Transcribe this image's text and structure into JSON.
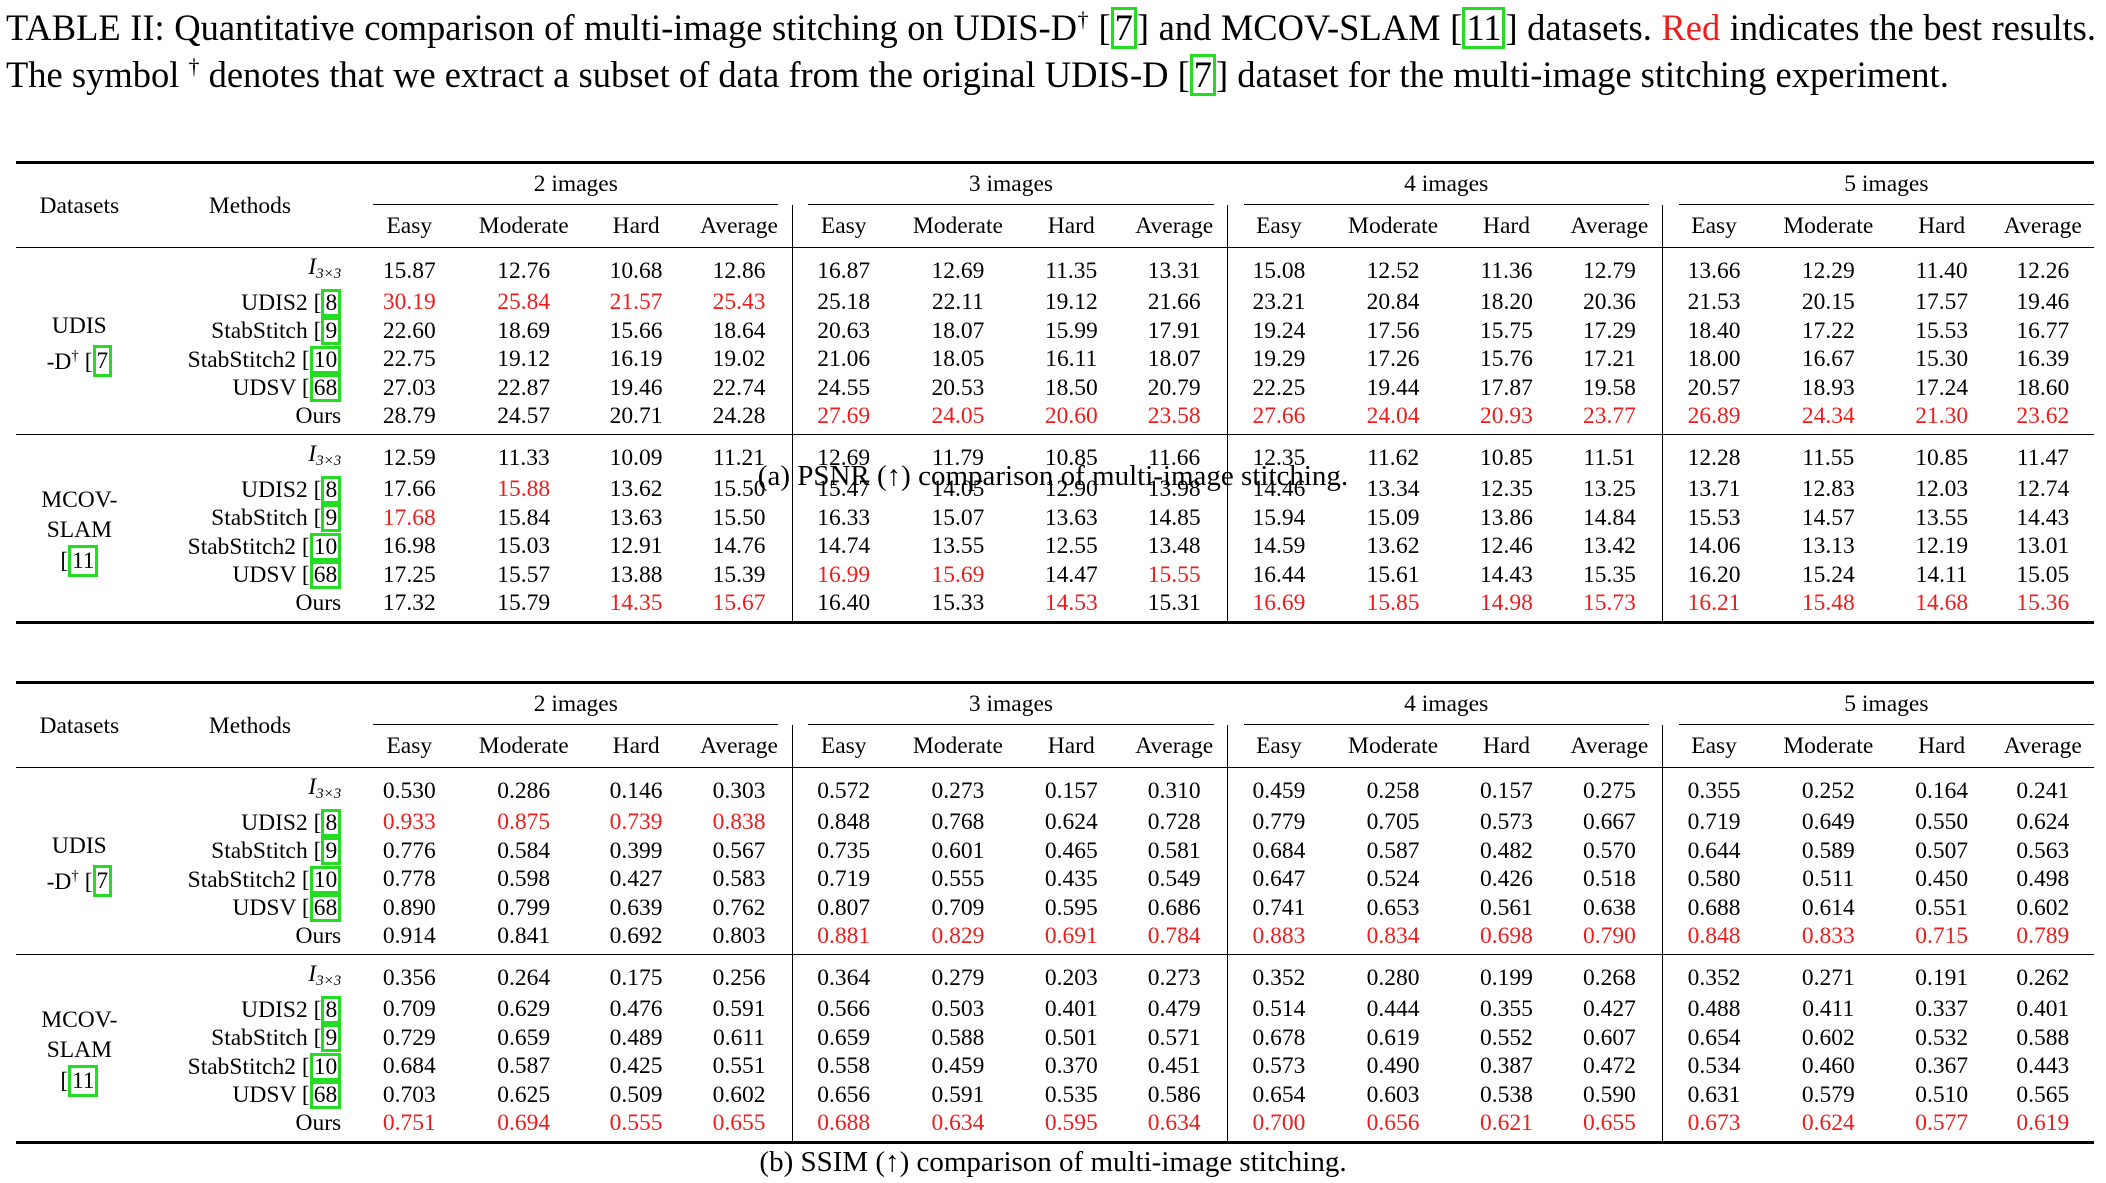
{
  "caption": {
    "prefix": "TABLE II: Quantitative comparison of multi-image stitching on UDIS-D",
    "dagger": "†",
    "ref1_open": " [",
    "ref1": "7",
    "mid1": "] and MCOV-SLAM [",
    "ref2": "11",
    "mid2": "] datasets. ",
    "red_word": "Red",
    "mid3": " indicates the best results. The symbol ",
    "dagger2": "†",
    "mid4": " denotes that we extract a subset of data from the original UDIS-D [",
    "ref3": "7",
    "suffix": "] dataset for the multi-image stitching experiment."
  },
  "header": {
    "datasets": "Datasets",
    "methods": "Methods",
    "groups": [
      "2 images",
      "3 images",
      "4 images",
      "5 images"
    ],
    "subcols": [
      "Easy",
      "Moderate",
      "Hard",
      "Average"
    ]
  },
  "dataset_labels": {
    "udis_line1": "UDIS",
    "udis_line2": "-D",
    "udis_dagger": "†",
    "udis_ref": "7",
    "mcov_line1": "MCOV-",
    "mcov_line2": "SLAM",
    "mcov_ref": "11"
  },
  "methods": {
    "identity_base": "I",
    "identity_sub": "3×3",
    "udis2": "UDIS2 [",
    "udis2_ref": "8",
    "stab": "StabStitch [",
    "stab_ref": "9",
    "stab2": "StabStitch2 [",
    "stab2_ref": "10",
    "udsv": "UDSV [",
    "udsv_ref": "68",
    "ours": "Ours"
  },
  "colors": {
    "best": "#ee1c1c",
    "ref_box": "#22dd22"
  },
  "psnr": {
    "caption": "(a) PSNR (↑) comparison of multi-image stitching.",
    "udis": [
      [
        "15.87",
        "12.76",
        "10.68",
        "12.86",
        "16.87",
        "12.69",
        "11.35",
        "13.31",
        "15.08",
        "12.52",
        "11.36",
        "12.79",
        "13.66",
        "12.29",
        "11.40",
        "12.26"
      ],
      [
        "30.19",
        "25.84",
        "21.57",
        "25.43",
        "25.18",
        "22.11",
        "19.12",
        "21.66",
        "23.21",
        "20.84",
        "18.20",
        "20.36",
        "21.53",
        "20.15",
        "17.57",
        "19.46"
      ],
      [
        "22.60",
        "18.69",
        "15.66",
        "18.64",
        "20.63",
        "18.07",
        "15.99",
        "17.91",
        "19.24",
        "17.56",
        "15.75",
        "17.29",
        "18.40",
        "17.22",
        "15.53",
        "16.77"
      ],
      [
        "22.75",
        "19.12",
        "16.19",
        "19.02",
        "21.06",
        "18.05",
        "16.11",
        "18.07",
        "19.29",
        "17.26",
        "15.76",
        "17.21",
        "18.00",
        "16.67",
        "15.30",
        "16.39"
      ],
      [
        "27.03",
        "22.87",
        "19.46",
        "22.74",
        "24.55",
        "20.53",
        "18.50",
        "20.79",
        "22.25",
        "19.44",
        "17.87",
        "19.58",
        "20.57",
        "18.93",
        "17.24",
        "18.60"
      ],
      [
        "28.79",
        "24.57",
        "20.71",
        "24.28",
        "27.69",
        "24.05",
        "20.60",
        "23.58",
        "27.66",
        "24.04",
        "20.93",
        "23.77",
        "26.89",
        "24.34",
        "21.30",
        "23.62"
      ]
    ],
    "mcov": [
      [
        "12.59",
        "11.33",
        "10.09",
        "11.21",
        "12.69",
        "11.79",
        "10.85",
        "11.66",
        "12.35",
        "11.62",
        "10.85",
        "11.51",
        "12.28",
        "11.55",
        "10.85",
        "11.47"
      ],
      [
        "17.66",
        "15.88",
        "13.62",
        "15.50",
        "15.47",
        "14.05",
        "12.90",
        "13.98",
        "14.46",
        "13.34",
        "12.35",
        "13.25",
        "13.71",
        "12.83",
        "12.03",
        "12.74"
      ],
      [
        "17.68",
        "15.84",
        "13.63",
        "15.50",
        "16.33",
        "15.07",
        "13.63",
        "14.85",
        "15.94",
        "15.09",
        "13.86",
        "14.84",
        "15.53",
        "14.57",
        "13.55",
        "14.43"
      ],
      [
        "16.98",
        "15.03",
        "12.91",
        "14.76",
        "14.74",
        "13.55",
        "12.55",
        "13.48",
        "14.59",
        "13.62",
        "12.46",
        "13.42",
        "14.06",
        "13.13",
        "12.19",
        "13.01"
      ],
      [
        "17.25",
        "15.57",
        "13.88",
        "15.39",
        "16.99",
        "15.69",
        "14.47",
        "15.55",
        "16.44",
        "15.61",
        "14.43",
        "15.35",
        "16.20",
        "15.24",
        "14.11",
        "15.05"
      ],
      [
        "17.32",
        "15.79",
        "14.35",
        "15.67",
        "16.40",
        "15.33",
        "14.53",
        "15.31",
        "16.69",
        "15.85",
        "14.98",
        "15.73",
        "16.21",
        "15.48",
        "14.68",
        "15.36"
      ]
    ],
    "udis_best": [
      [],
      [
        0,
        1,
        2,
        3
      ],
      [],
      [],
      [],
      [
        4,
        5,
        6,
        7,
        8,
        9,
        10,
        11,
        12,
        13,
        14,
        15
      ]
    ],
    "mcov_best": [
      [],
      [
        1
      ],
      [
        0
      ],
      [],
      [
        4,
        5,
        7
      ],
      [
        2,
        3,
        6,
        8,
        9,
        10,
        11,
        12,
        13,
        14,
        15
      ]
    ]
  },
  "ssim": {
    "caption": "(b) SSIM (↑) comparison of multi-image stitching.",
    "udis": [
      [
        "0.530",
        "0.286",
        "0.146",
        "0.303",
        "0.572",
        "0.273",
        "0.157",
        "0.310",
        "0.459",
        "0.258",
        "0.157",
        "0.275",
        "0.355",
        "0.252",
        "0.164",
        "0.241"
      ],
      [
        "0.933",
        "0.875",
        "0.739",
        "0.838",
        "0.848",
        "0.768",
        "0.624",
        "0.728",
        "0.779",
        "0.705",
        "0.573",
        "0.667",
        "0.719",
        "0.649",
        "0.550",
        "0.624"
      ],
      [
        "0.776",
        "0.584",
        "0.399",
        "0.567",
        "0.735",
        "0.601",
        "0.465",
        "0.581",
        "0.684",
        "0.587",
        "0.482",
        "0.570",
        "0.644",
        "0.589",
        "0.507",
        "0.563"
      ],
      [
        "0.778",
        "0.598",
        "0.427",
        "0.583",
        "0.719",
        "0.555",
        "0.435",
        "0.549",
        "0.647",
        "0.524",
        "0.426",
        "0.518",
        "0.580",
        "0.511",
        "0.450",
        "0.498"
      ],
      [
        "0.890",
        "0.799",
        "0.639",
        "0.762",
        "0.807",
        "0.709",
        "0.595",
        "0.686",
        "0.741",
        "0.653",
        "0.561",
        "0.638",
        "0.688",
        "0.614",
        "0.551",
        "0.602"
      ],
      [
        "0.914",
        "0.841",
        "0.692",
        "0.803",
        "0.881",
        "0.829",
        "0.691",
        "0.784",
        "0.883",
        "0.834",
        "0.698",
        "0.790",
        "0.848",
        "0.833",
        "0.715",
        "0.789"
      ]
    ],
    "mcov": [
      [
        "0.356",
        "0.264",
        "0.175",
        "0.256",
        "0.364",
        "0.279",
        "0.203",
        "0.273",
        "0.352",
        "0.280",
        "0.199",
        "0.268",
        "0.352",
        "0.271",
        "0.191",
        "0.262"
      ],
      [
        "0.709",
        "0.629",
        "0.476",
        "0.591",
        "0.566",
        "0.503",
        "0.401",
        "0.479",
        "0.514",
        "0.444",
        "0.355",
        "0.427",
        "0.488",
        "0.411",
        "0.337",
        "0.401"
      ],
      [
        "0.729",
        "0.659",
        "0.489",
        "0.611",
        "0.659",
        "0.588",
        "0.501",
        "0.571",
        "0.678",
        "0.619",
        "0.552",
        "0.607",
        "0.654",
        "0.602",
        "0.532",
        "0.588"
      ],
      [
        "0.684",
        "0.587",
        "0.425",
        "0.551",
        "0.558",
        "0.459",
        "0.370",
        "0.451",
        "0.573",
        "0.490",
        "0.387",
        "0.472",
        "0.534",
        "0.460",
        "0.367",
        "0.443"
      ],
      [
        "0.703",
        "0.625",
        "0.509",
        "0.602",
        "0.656",
        "0.591",
        "0.535",
        "0.586",
        "0.654",
        "0.603",
        "0.538",
        "0.590",
        "0.631",
        "0.579",
        "0.510",
        "0.565"
      ],
      [
        "0.751",
        "0.694",
        "0.555",
        "0.655",
        "0.688",
        "0.634",
        "0.595",
        "0.634",
        "0.700",
        "0.656",
        "0.621",
        "0.655",
        "0.673",
        "0.624",
        "0.577",
        "0.619"
      ]
    ],
    "udis_best": [
      [],
      [
        0,
        1,
        2,
        3
      ],
      [],
      [],
      [],
      [
        4,
        5,
        6,
        7,
        8,
        9,
        10,
        11,
        12,
        13,
        14,
        15
      ]
    ],
    "mcov_best": [
      [],
      [],
      [],
      [],
      [],
      [
        0,
        1,
        2,
        3,
        4,
        5,
        6,
        7,
        8,
        9,
        10,
        11,
        12,
        13,
        14,
        15
      ]
    ]
  }
}
